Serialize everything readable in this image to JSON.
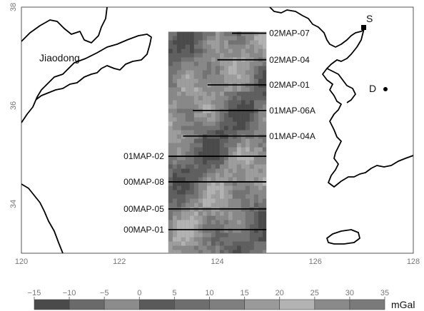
{
  "map": {
    "lon_range": [
      120,
      128
    ],
    "lat_range": [
      33,
      38
    ],
    "x_ticks": [
      "120",
      "122",
      "124",
      "126",
      "128"
    ],
    "y_ticks": [
      "38",
      "36",
      "34"
    ],
    "coast_color": "#000000",
    "background": "#ffffff"
  },
  "labels": {
    "jiaodong": "Jiaodong",
    "city_s": "S",
    "city_d": "D"
  },
  "survey_lines": [
    {
      "name": "02MAP-07",
      "lat": 37.47,
      "lon_from": 124.3,
      "lon_to": 125.0
    },
    {
      "name": "02MAP-04",
      "lat": 36.93,
      "lon_from": 124.0,
      "lon_to": 125.0
    },
    {
      "name": "02MAP-01",
      "lat": 36.42,
      "lon_from": 123.8,
      "lon_to": 125.0
    },
    {
      "name": "01MAP-06A",
      "lat": 35.9,
      "lon_from": 123.5,
      "lon_to": 125.0
    },
    {
      "name": "01MAP-04A",
      "lat": 35.38,
      "lon_from": 123.3,
      "lon_to": 125.0
    },
    {
      "name": "01MAP-02",
      "lat": 34.97,
      "lon_from": 123.0,
      "lon_to": 125.0
    },
    {
      "name": "00MAP-08",
      "lat": 34.45,
      "lon_from": 123.0,
      "lon_to": 125.0
    },
    {
      "name": "00MAP-05",
      "lat": 33.9,
      "lon_from": 123.0,
      "lon_to": 125.0
    },
    {
      "name": "00MAP-01",
      "lat": 33.48,
      "lon_from": 123.0,
      "lon_to": 125.0
    }
  ],
  "colorbar": {
    "ticks": [
      "−15",
      "−10",
      "−5",
      "0",
      "5",
      "10",
      "15",
      "20",
      "25",
      "30",
      "35"
    ],
    "unit": "mGal",
    "colors": [
      "#4a4a4a",
      "#6a6a6a",
      "#8c8c8c",
      "#5a5a5a",
      "#6e6e6e",
      "#7f7f7f",
      "#9a9a9a",
      "#b3b3b3",
      "#8a8a8a",
      "#7a7a7a"
    ]
  },
  "anomaly_palette": [
    "#4a4a4a",
    "#5f5f5f",
    "#737373",
    "#888888",
    "#9d9d9d",
    "#b2b2b2"
  ]
}
